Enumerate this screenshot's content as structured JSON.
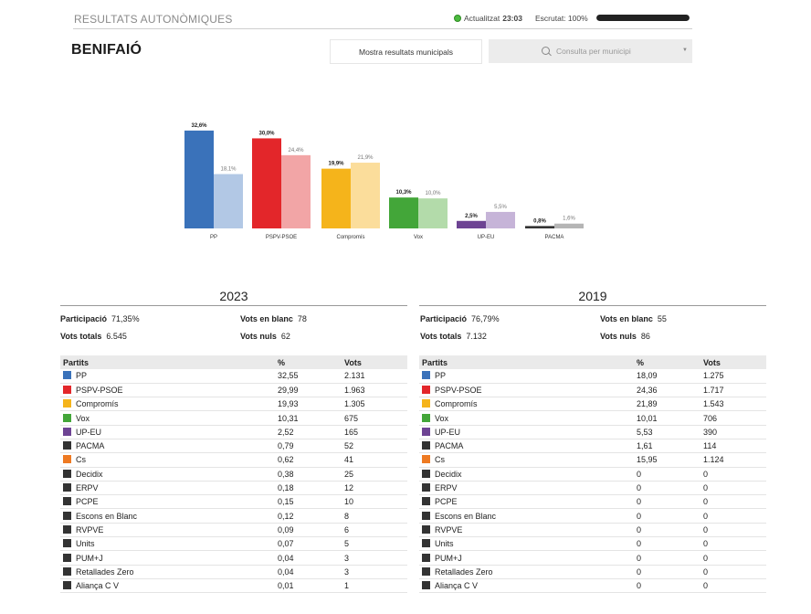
{
  "header": {
    "section_title": "RESULTATS AUTONÒMIQUES",
    "updated_label": "Actualitzat",
    "updated_time": "23:03",
    "counted_text": "Escrutat: 100%",
    "counted_fraction": 1.0
  },
  "town": "BENIFAIÓ",
  "buttons": {
    "municipal_results": "Mostra resultats municipals"
  },
  "search": {
    "placeholder": "Consulta per municipi"
  },
  "chart_data": {
    "type": "bar",
    "categories": [
      "PP",
      "PSPV-PSOE",
      "Compromís",
      "Vox",
      "UP-EU",
      "PACMA"
    ],
    "series": [
      {
        "values": [
          32.6,
          30.0,
          19.9,
          10.3,
          2.5,
          0.8
        ],
        "labels": [
          "32,6%",
          "30,0%",
          "19,9%",
          "10,3%",
          "2,5%",
          "0,8%"
        ]
      },
      {
        "values": [
          18.1,
          24.4,
          21.9,
          10.0,
          5.5,
          1.6
        ],
        "labels": [
          "18,1%",
          "24,4%",
          "21,9%",
          "10,0%",
          "5,5%",
          "1,6%"
        ]
      }
    ],
    "colors_current": [
      "#3a72ba",
      "#e3262a",
      "#f5b41b",
      "#43a639",
      "#6d4393",
      "#333333"
    ],
    "colors_previous": [
      "#b2c8e5",
      "#f2a5a6",
      "#fbdd9b",
      "#b3dbaa",
      "#c6b4d8",
      "#b5b5b5"
    ],
    "ylim": [
      0,
      35
    ]
  },
  "results": [
    {
      "year": "2023",
      "stats": {
        "participation_label": "Participació",
        "participation": "71,35%",
        "blank_label": "Vots en blanc",
        "blank": "78",
        "total_label": "Vots totals",
        "total": "6.545",
        "null_label": "Vots nuls",
        "null": "62"
      },
      "headers": [
        "Partits",
        "%",
        "Vots"
      ],
      "rows": [
        {
          "party": "PP",
          "pct": "32,55",
          "votes": "2.131",
          "color": "#3a72ba"
        },
        {
          "party": "PSPV-PSOE",
          "pct": "29,99",
          "votes": "1.963",
          "color": "#e3262a"
        },
        {
          "party": "Compromís",
          "pct": "19,93",
          "votes": "1.305",
          "color": "#f5b41b"
        },
        {
          "party": "Vox",
          "pct": "10,31",
          "votes": "675",
          "color": "#43a639"
        },
        {
          "party": "UP-EU",
          "pct": "2,52",
          "votes": "165",
          "color": "#6d4393"
        },
        {
          "party": "PACMA",
          "pct": "0,79",
          "votes": "52",
          "color": "#333333"
        },
        {
          "party": "Cs",
          "pct": "0,62",
          "votes": "41",
          "color": "#ee7a22"
        },
        {
          "party": "Decidix",
          "pct": "0,38",
          "votes": "25",
          "color": "#333333"
        },
        {
          "party": "ERPV",
          "pct": "0,18",
          "votes": "12",
          "color": "#333333"
        },
        {
          "party": "PCPE",
          "pct": "0,15",
          "votes": "10",
          "color": "#333333"
        },
        {
          "party": "Escons en Blanc",
          "pct": "0,12",
          "votes": "8",
          "color": "#333333"
        },
        {
          "party": "RVPVE",
          "pct": "0,09",
          "votes": "6",
          "color": "#333333"
        },
        {
          "party": "Units",
          "pct": "0,07",
          "votes": "5",
          "color": "#333333"
        },
        {
          "party": "PUM+J",
          "pct": "0,04",
          "votes": "3",
          "color": "#333333"
        },
        {
          "party": "Retallades Zero",
          "pct": "0,04",
          "votes": "3",
          "color": "#333333"
        },
        {
          "party": "Aliança C V",
          "pct": "0,01",
          "votes": "1",
          "color": "#333333"
        }
      ]
    },
    {
      "year": "2019",
      "stats": {
        "participation_label": "Participació",
        "participation": "76,79%",
        "blank_label": "Vots en blanc",
        "blank": "55",
        "total_label": "Vots totals",
        "total": "7.132",
        "null_label": "Vots nuls",
        "null": "86"
      },
      "headers": [
        "Partits",
        "%",
        "Vots"
      ],
      "rows": [
        {
          "party": "PP",
          "pct": "18,09",
          "votes": "1.275",
          "color": "#3a72ba"
        },
        {
          "party": "PSPV-PSOE",
          "pct": "24,36",
          "votes": "1.717",
          "color": "#e3262a"
        },
        {
          "party": "Compromís",
          "pct": "21,89",
          "votes": "1.543",
          "color": "#f5b41b"
        },
        {
          "party": "Vox",
          "pct": "10,01",
          "votes": "706",
          "color": "#43a639"
        },
        {
          "party": "UP-EU",
          "pct": "5,53",
          "votes": "390",
          "color": "#6d4393"
        },
        {
          "party": "PACMA",
          "pct": "1,61",
          "votes": "114",
          "color": "#333333"
        },
        {
          "party": "Cs",
          "pct": "15,95",
          "votes": "1.124",
          "color": "#ee7a22"
        },
        {
          "party": "Decidix",
          "pct": "0",
          "votes": "0",
          "color": "#333333"
        },
        {
          "party": "ERPV",
          "pct": "0",
          "votes": "0",
          "color": "#333333"
        },
        {
          "party": "PCPE",
          "pct": "0",
          "votes": "0",
          "color": "#333333"
        },
        {
          "party": "Escons en Blanc",
          "pct": "0",
          "votes": "0",
          "color": "#333333"
        },
        {
          "party": "RVPVE",
          "pct": "0",
          "votes": "0",
          "color": "#333333"
        },
        {
          "party": "Units",
          "pct": "0",
          "votes": "0",
          "color": "#333333"
        },
        {
          "party": "PUM+J",
          "pct": "0",
          "votes": "0",
          "color": "#333333"
        },
        {
          "party": "Retallades Zero",
          "pct": "0",
          "votes": "0",
          "color": "#333333"
        },
        {
          "party": "Aliança C V",
          "pct": "0",
          "votes": "0",
          "color": "#333333"
        }
      ]
    }
  ]
}
